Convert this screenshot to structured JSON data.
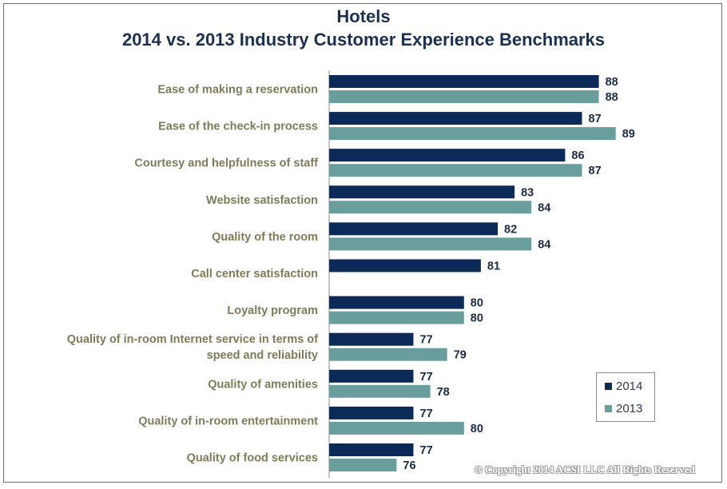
{
  "title_line1": "Hotels",
  "title_line2": "2014 vs. 2013 Industry Customer Experience Benchmarks",
  "copyright": "© Copyright 2014 ACSI LLC All Rights Reserved",
  "colors": {
    "series_2014": "#0c2a58",
    "series_2013": "#6a9e9c",
    "axis": "#8a8a8a"
  },
  "chart_data": {
    "type": "bar",
    "orientation": "horizontal",
    "title": "Hotels — 2014 vs. 2013 Industry Customer Experience Benchmarks",
    "categories": [
      "Ease of making a reservation",
      "Ease of the check-in process",
      "Courtesy and helpfulness of staff",
      "Website satisfaction",
      "Quality of the room",
      "Call center satisfaction",
      "Loyalty program",
      "Quality of in-room Internet service in terms of speed and reliability",
      "Quality of amenities",
      "Quality of in-room entertainment",
      "Quality of food services"
    ],
    "category_lines": [
      [
        "Ease of making a reservation"
      ],
      [
        "Ease of the check-in process"
      ],
      [
        "Courtesy and helpfulness of staff"
      ],
      [
        "Website satisfaction"
      ],
      [
        "Quality of the room"
      ],
      [
        "Call center satisfaction"
      ],
      [
        "Loyalty program"
      ],
      [
        "Quality of in-room Internet service in terms of",
        "speed and reliability"
      ],
      [
        "Quality of amenities"
      ],
      [
        "Quality of in-room entertainment"
      ],
      [
        "Quality of food services"
      ]
    ],
    "series": [
      {
        "name": "2014",
        "values": [
          88,
          87,
          86,
          83,
          82,
          81,
          80,
          77,
          77,
          77,
          77
        ]
      },
      {
        "name": "2013",
        "values": [
          88,
          89,
          87,
          84,
          84,
          null,
          80,
          79,
          78,
          80,
          76
        ]
      }
    ],
    "xlim": [
      72,
      91
    ],
    "legend_position": "bottom-right",
    "grid": false
  }
}
